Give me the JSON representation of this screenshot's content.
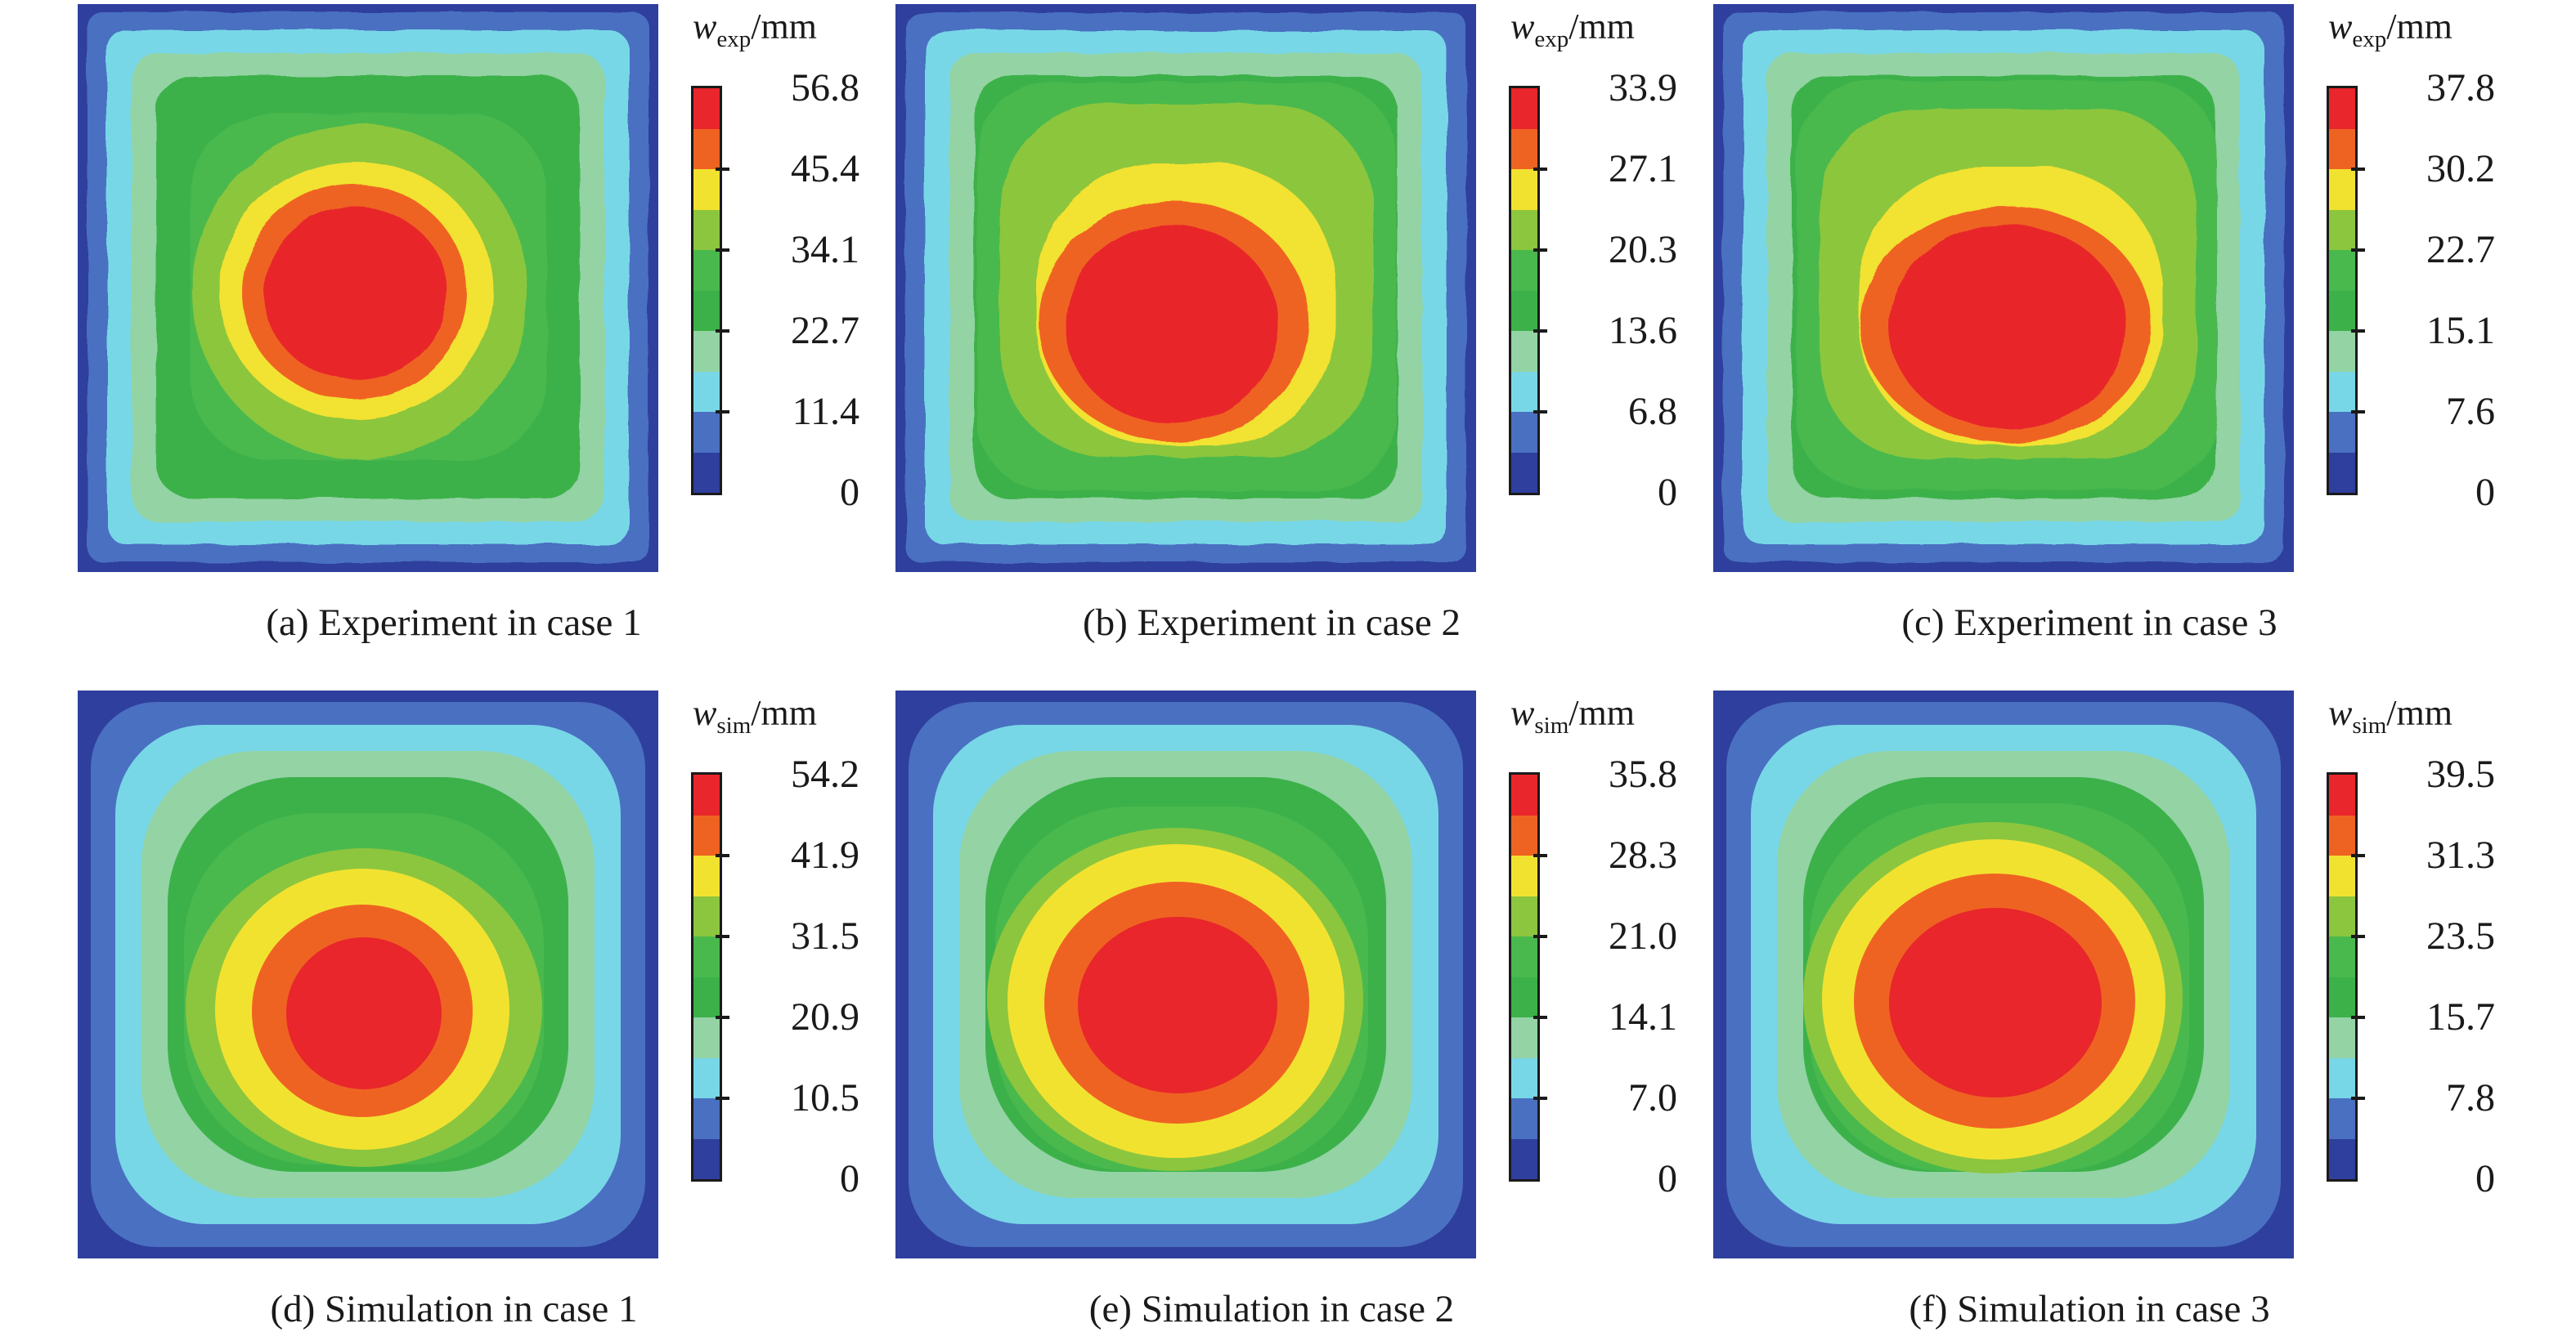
{
  "palette": {
    "n_segments": 10,
    "colors_top_to_bottom": [
      "#e8262b",
      "#ef6322",
      "#f2e230",
      "#8cc63e",
      "#49b94d",
      "#3cb14a",
      "#93d3a4",
      "#78d7e7",
      "#4a70c1",
      "#2f3f9d"
    ],
    "frame_color": "#1a1a1a",
    "tick_every_n_bands": 2
  },
  "chart_data": [
    {
      "type": "heatmap",
      "panel_label": "(a)",
      "caption": "(a) Experiment in case 1",
      "colorbar": {
        "var": "w",
        "sub": "exp",
        "unit": "/mm",
        "max_mm": 56.8,
        "min_mm": 0,
        "tick_labels_top_to_bottom": [
          "56.8",
          "45.4",
          "34.1",
          "22.7",
          "11.4",
          "0"
        ],
        "tick_values_mm": [
          56.8,
          45.4,
          34.1,
          22.7,
          11.4,
          0
        ],
        "n_color_bands": 10
      },
      "pattern": "nested contour bands, maximum deflection near plate center"
    },
    {
      "type": "heatmap",
      "panel_label": "(b)",
      "caption": "(b) Experiment in case 2",
      "colorbar": {
        "var": "w",
        "sub": "exp",
        "unit": "/mm",
        "max_mm": 33.9,
        "min_mm": 0,
        "tick_labels_top_to_bottom": [
          "33.9",
          "27.1",
          "20.3",
          "13.6",
          "6.8",
          "0"
        ],
        "tick_values_mm": [
          33.9,
          27.1,
          20.3,
          13.6,
          6.8,
          0
        ],
        "n_color_bands": 10
      },
      "pattern": "nested contour bands, maximum deflection near plate center"
    },
    {
      "type": "heatmap",
      "panel_label": "(c)",
      "caption": "(c) Experiment in case 3",
      "colorbar": {
        "var": "w",
        "sub": "exp",
        "unit": "/mm",
        "max_mm": 37.8,
        "min_mm": 0,
        "tick_labels_top_to_bottom": [
          "37.8",
          "30.2",
          "22.7",
          "15.1",
          "7.6",
          "0"
        ],
        "tick_values_mm": [
          37.8,
          30.2,
          22.7,
          15.1,
          7.6,
          0
        ],
        "n_color_bands": 10
      },
      "pattern": "nested contour bands, maximum deflection near plate center"
    },
    {
      "type": "heatmap",
      "panel_label": "(d)",
      "caption": "(d) Simulation in case 1",
      "colorbar": {
        "var": "w",
        "sub": "sim",
        "unit": "/mm",
        "max_mm": 54.2,
        "min_mm": 0,
        "tick_labels_top_to_bottom": [
          "54.2",
          "41.9",
          "31.5",
          "20.9",
          "10.5",
          "0"
        ],
        "tick_values_mm": [
          54.2,
          41.9,
          31.5,
          20.9,
          10.5,
          0
        ],
        "n_color_bands": 10
      },
      "pattern": "smooth concentric rounded-square contour bands, peak at center"
    },
    {
      "type": "heatmap",
      "panel_label": "(e)",
      "caption": "(e) Simulation in case 2",
      "colorbar": {
        "var": "w",
        "sub": "sim",
        "unit": "/mm",
        "max_mm": 35.8,
        "min_mm": 0,
        "tick_labels_top_to_bottom": [
          "35.8",
          "28.3",
          "21.0",
          "14.1",
          "7.0",
          "0"
        ],
        "tick_values_mm": [
          35.8,
          28.3,
          21.0,
          14.1,
          7.0,
          0
        ],
        "n_color_bands": 10
      },
      "pattern": "smooth concentric rounded-square contour bands, peak at center"
    },
    {
      "type": "heatmap",
      "panel_label": "(f)",
      "caption": "(f) Simulation in case 3",
      "colorbar": {
        "var": "w",
        "sub": "sim",
        "unit": "/mm",
        "max_mm": 39.5,
        "min_mm": 0,
        "tick_labels_top_to_bottom": [
          "39.5",
          "31.3",
          "23.5",
          "15.7",
          "7.8",
          "0"
        ],
        "tick_values_mm": [
          39.5,
          31.3,
          23.5,
          15.7,
          7.8,
          0
        ],
        "n_color_bands": 10
      },
      "pattern": "smooth concentric rounded-square contour bands, peak at center"
    }
  ]
}
